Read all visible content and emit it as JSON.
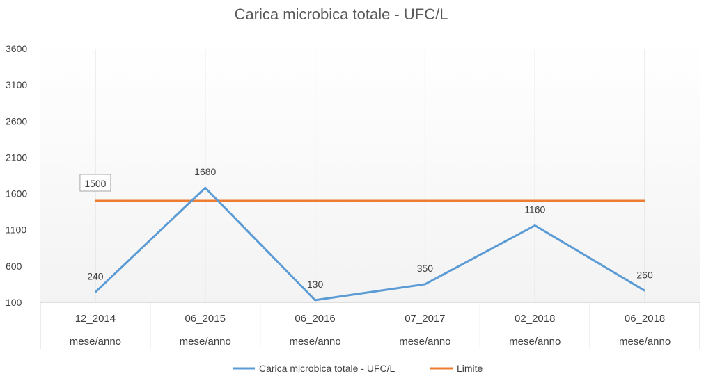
{
  "chart_data": {
    "type": "line",
    "title": "Carica microbica totale - UFC/L",
    "categories": [
      "12_2014",
      "06_2015",
      "06_2016",
      "07_2017",
      "02_2018",
      "06_2018"
    ],
    "category_sublabel": "mese/anno",
    "series": [
      {
        "name": "Carica microbica totale - UFC/L",
        "values": [
          240,
          1680,
          130,
          350,
          1160,
          260
        ],
        "color": "#5b9bd5",
        "data_labels": true
      },
      {
        "name": "Limite",
        "values": [
          1500,
          1500,
          1500,
          1500,
          1500,
          1500
        ],
        "color": "#ed7d31",
        "data_label_first_only": "1500"
      }
    ],
    "y_ticks": [
      100,
      600,
      1100,
      1600,
      2100,
      2600,
      3100,
      3600
    ],
    "ylim": [
      100,
      3600
    ],
    "grid": "vertical",
    "legend_position": "bottom"
  }
}
